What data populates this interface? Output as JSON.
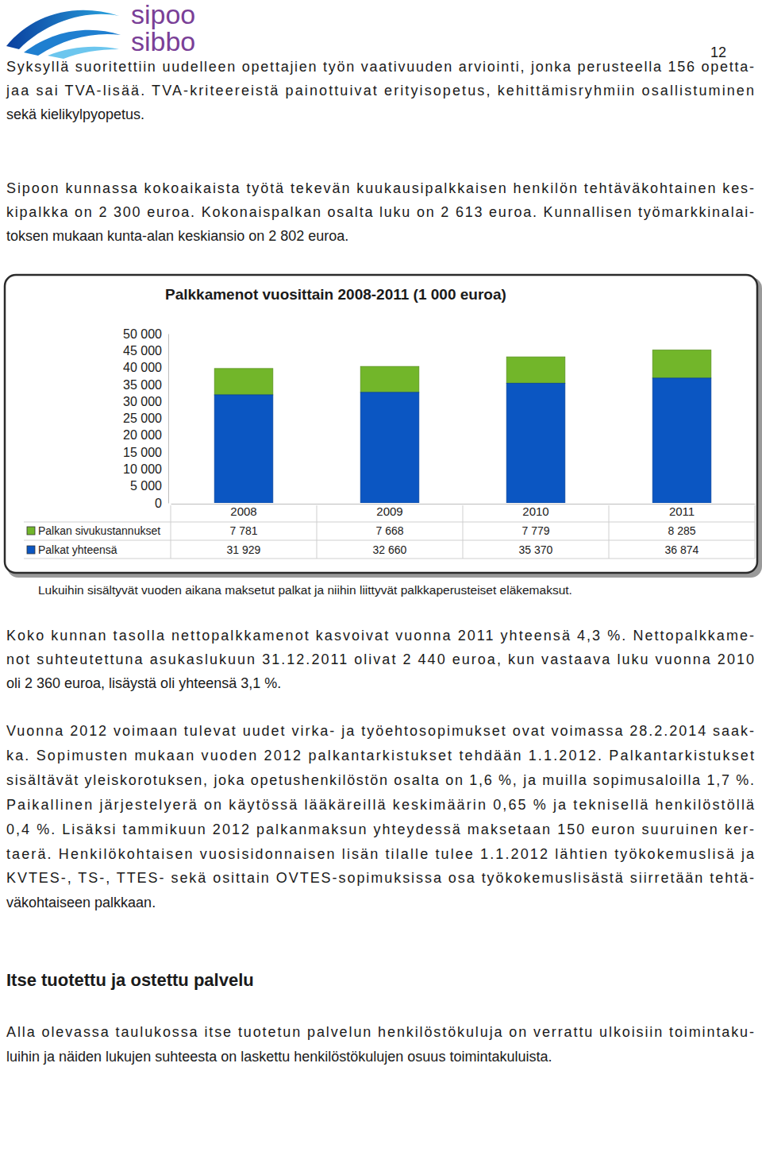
{
  "header": {
    "logo": [
      "sipoo",
      "sibbo"
    ],
    "page_number": "12"
  },
  "body_top": [
    [
      "Syksyllä suoritettiin uudelleen opettajien työn vaativuuden arviointi, jonka perusteella 156 opetta-",
      "jaa sai TVA-lisää. TVA-kriteereistä painottuivat erityisopetus, kehittämisryhmiin osallistuminen",
      "sekä kielikylpyopetus."
    ],
    [
      "Sipoon kunnassa kokoaikaista työtä tekevän kuukausipalkkaisen henkilön tehtäväkohtainen kes-",
      "kipalkka on 2 300 euroa. Kokonaispalkan osalta luku on 2 613 euroa. Kunnallisen työmarkkinalai-",
      "toksen mukaan kunta-alan keskiansio on 2 802 euroa."
    ]
  ],
  "chart_data": {
    "type": "bar",
    "stacked": true,
    "title": "Palkkamenot vuosittain 2008-2011 (1 000 euroa)",
    "categories": [
      "2008",
      "2009",
      "2010",
      "2011"
    ],
    "series": [
      {
        "name": "Palkan sivukustannukset",
        "color": "#72b62a",
        "values": [
          7781,
          7668,
          7779,
          8285
        ],
        "value_labels": [
          "7 781",
          "7 668",
          "7 779",
          "8 285"
        ]
      },
      {
        "name": "Palkat yhteensä",
        "color": "#0b56c2",
        "values": [
          31929,
          32660,
          35370,
          36874
        ],
        "value_labels": [
          "31 929",
          "32 660",
          "35 370",
          "36 874"
        ]
      }
    ],
    "ylim": [
      0,
      50000
    ],
    "yticks": [
      0,
      {
        "value": 5000,
        "label": "5 000"
      },
      {
        "value": 10000,
        "label": "10 000"
      },
      {
        "value": 15000,
        "label": "15 000"
      },
      {
        "value": 20000,
        "label": "20 000"
      },
      {
        "value": 25000,
        "label": "25 000"
      },
      {
        "value": 30000,
        "label": "30 000"
      },
      {
        "value": 35000,
        "label": "35 000"
      },
      {
        "value": 40000,
        "label": "40 000"
      },
      {
        "value": 45000,
        "label": "45 000"
      },
      {
        "value": 50000,
        "label": "50 000"
      }
    ],
    "grid": false
  },
  "caption": "Lukuihin sisältyvät vuoden aikana maksetut palkat ja niihin liittyvät palkkaperusteiset eläkemaksut.",
  "body_bottom": [
    [
      "Koko kunnan tasolla nettopalkkamenot kasvoivat vuonna 2011 yhteensä 4,3 %. Nettopalkkame-",
      "not suhteutettuna asukaslukuun 31.12.2011 olivat 2 440 euroa, kun vastaava luku vuonna 2010",
      "oli 2 360 euroa, lisäystä oli yhteensä 3,1 %."
    ],
    [
      "Vuonna 2012 voimaan tulevat uudet virka- ja työehtosopimukset ovat voimassa 28.2.2014 saak-",
      "ka. Sopimusten mukaan vuoden 2012 palkantarkistukset tehdään 1.1.2012. Palkantarkistukset",
      "sisältävät yleiskorotuksen, joka opetushenkilöstön osalta on 1,6 %, ja muilla sopimusaloilla 1,7 %.",
      "Paikallinen järjestelyerä on käytössä lääkäreillä keskimäärin 0,65 % ja teknisellä henkilöstöllä",
      "0,4 %. Lisäksi tammikuun 2012 palkanmaksun yhteydessä maksetaan 150 euron suuruinen ker-",
      "taerä. Henkilökohtaisen vuosisidonnaisen lisän tilalle tulee 1.1.2012 lähtien työkokemuslisä ja",
      "KVTES-, TS-, TTES- sekä osittain OVTES-sopimuksissa osa työkokemuslisästä siirretään tehtä-",
      "väkohtaiseen palkkaan."
    ]
  ],
  "heading": "Itse tuotettu ja ostettu palvelu",
  "body_end": [
    [
      "Alla olevassa taulukossa itse tuotetun palvelun henkilöstökuluja on verrattu ulkoisiin toimintaku-",
      "luihin ja näiden lukujen suhteesta on laskettu henkilöstökulujen osuus toimintakuluista."
    ]
  ]
}
